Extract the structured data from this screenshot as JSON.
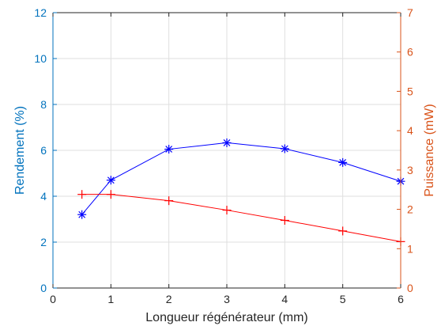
{
  "chart_data": {
    "type": "line",
    "title": "",
    "xlabel": "Longueur régénérateur (mm)",
    "ylabel_left": "Rendement (%)",
    "ylabel_right": "Puissance (mW)",
    "xlim": [
      0,
      6
    ],
    "ylim_left": [
      0,
      12
    ],
    "ylim_right": [
      0,
      7
    ],
    "x_ticks": [
      0,
      1,
      2,
      3,
      4,
      5,
      6
    ],
    "y_ticks_left": [
      0,
      2,
      4,
      6,
      8,
      10,
      12
    ],
    "y_ticks_right": [
      0,
      1,
      2,
      3,
      4,
      5,
      6,
      7
    ],
    "grid": true,
    "colors": {
      "left_axis": "#0072BD",
      "right_axis": "#D95319",
      "rendement": "#0000ff",
      "puissance": "#ff0000"
    },
    "series": [
      {
        "axis": "left",
        "marker": "asterisk",
        "x": [
          0.5,
          1,
          2,
          3,
          4,
          5,
          6
        ],
        "values": [
          3.2,
          4.7,
          6.05,
          6.33,
          6.07,
          5.47,
          4.65
        ]
      },
      {
        "axis": "right",
        "marker": "plus",
        "x": [
          0.5,
          1,
          2,
          3,
          4,
          5,
          6
        ],
        "values": [
          2.38,
          2.38,
          2.22,
          1.98,
          1.72,
          1.45,
          1.18
        ]
      }
    ]
  }
}
